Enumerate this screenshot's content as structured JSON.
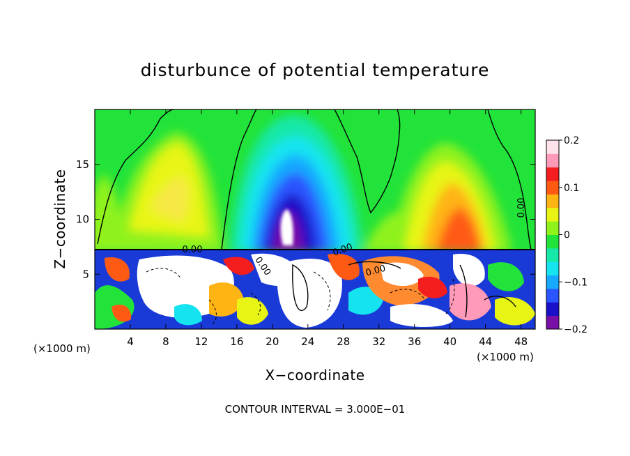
{
  "chart_data": {
    "type": "heatmap",
    "title": "disturbunce of potential temperature",
    "xlabel": "X−coordinate",
    "ylabel": "Z−coordinate",
    "x_unit": "(×1000 m)",
    "xlim": [
      0,
      49.6
    ],
    "ylim": [
      0,
      20
    ],
    "x_ticks": [
      4,
      8,
      12,
      16,
      20,
      24,
      28,
      32,
      36,
      40,
      44,
      48
    ],
    "y_ticks": [
      5,
      10,
      15
    ],
    "colorbar": {
      "min": -0.2,
      "max": 0.2,
      "tick_values": [
        0.2,
        0.1,
        0,
        -0.1,
        -0.2
      ],
      "tick_labels": [
        "0.2",
        "0.1",
        "0",
        "−0.1",
        "−0.2"
      ],
      "colors": [
        "#7a0fa8",
        "#1a10c8",
        "#2a55ff",
        "#17a9ff",
        "#15e4f0",
        "#15e8a8",
        "#22e33a",
        "#8ff21a",
        "#e8f514",
        "#ffb414",
        "#ff5a14",
        "#f51e1e",
        "#ff9ab8",
        "#ffe2ea"
      ]
    },
    "contour_labels": [
      "0.00",
      "0.00",
      "0.00",
      "0.00",
      "0.00"
    ],
    "contour_interval_text": "CONTOUR INTERVAL = 3.000E−01",
    "grid": false
  }
}
